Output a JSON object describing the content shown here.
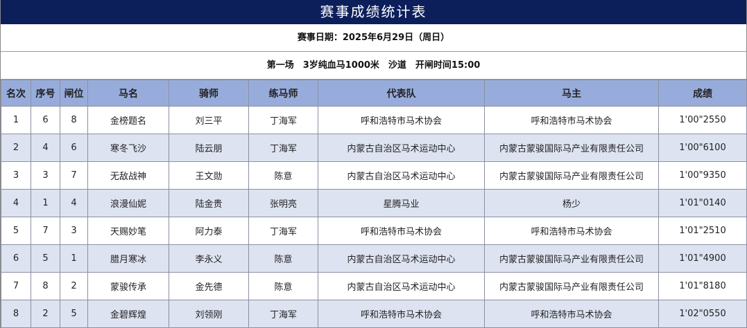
{
  "title": "赛事成绩统计表",
  "date_line": "赛事日期：2025年6月29日（周日）",
  "race_line": "第一场　3岁纯血马1000米　沙道　开闸时间15:00",
  "columns": [
    "名次",
    "序号",
    "闸位",
    "马名",
    "骑师",
    "练马师",
    "代表队",
    "马主",
    "成绩"
  ],
  "rows": [
    [
      "1",
      "6",
      "8",
      "金榜题名",
      "刘三平",
      "丁海军",
      "呼和浩特市马术协会",
      "呼和浩特市马术协会",
      "1'00\"2550"
    ],
    [
      "2",
      "4",
      "6",
      "寒冬飞沙",
      "陆云朋",
      "丁海军",
      "内蒙古自治区马术运动中心",
      "内蒙古蒙骏国际马产业有限责任公司",
      "1'00\"6100"
    ],
    [
      "3",
      "3",
      "7",
      "无敌战神",
      "王文勋",
      "陈意",
      "内蒙古自治区马术运动中心",
      "内蒙古蒙骏国际马产业有限责任公司",
      "1'00\"9350"
    ],
    [
      "4",
      "1",
      "4",
      "浪漫仙妮",
      "陆金贵",
      "张明亮",
      "星腾马业",
      "杨少",
      "1'01\"0140"
    ],
    [
      "5",
      "7",
      "3",
      "天赐妙笔",
      "阿力泰",
      "丁海军",
      "呼和浩特市马术协会",
      "呼和浩特市马术协会",
      "1'01\"2510"
    ],
    [
      "6",
      "5",
      "1",
      "腊月寒冰",
      "李永义",
      "陈意",
      "内蒙古自治区马术运动中心",
      "内蒙古蒙骏国际马产业有限责任公司",
      "1'01\"4900"
    ],
    [
      "7",
      "8",
      "2",
      "蒙骏传承",
      "金先德",
      "陈意",
      "内蒙古自治区马术运动中心",
      "内蒙古蒙骏国际马产业有限责任公司",
      "1'01\"8180"
    ],
    [
      "8",
      "2",
      "5",
      "金碧辉煌",
      "刘领刚",
      "丁海军",
      "呼和浩特市马术协会",
      "呼和浩特市马术协会",
      "1'02\"0550"
    ]
  ],
  "colors": {
    "title_bg": "#0c1f5b",
    "header_bg": "#98acdc",
    "alt_row_bg": "#dde3f1"
  }
}
